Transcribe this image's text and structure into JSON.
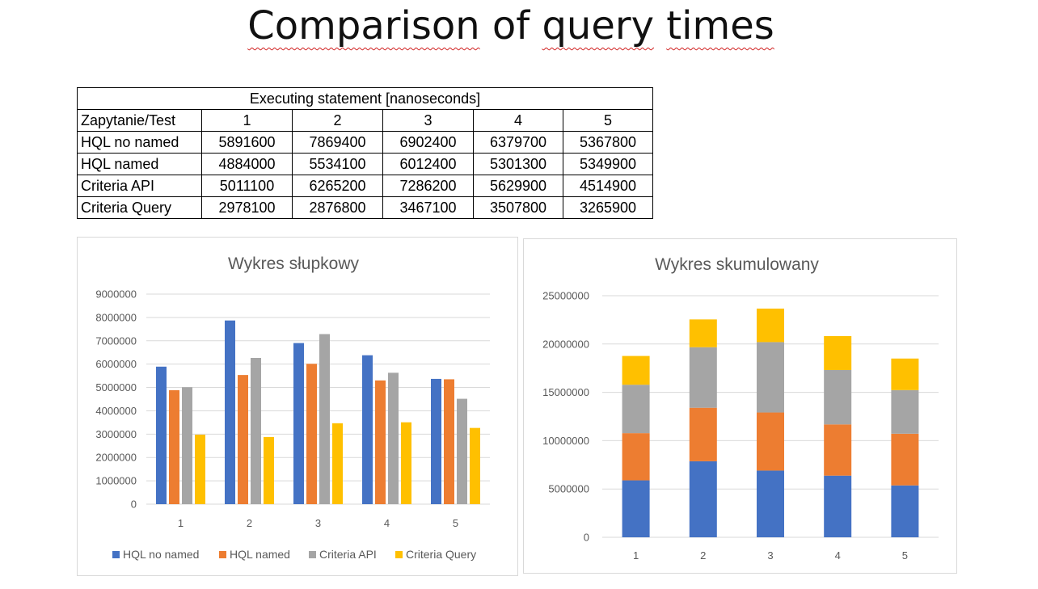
{
  "slide": {
    "title_words": [
      "Comparison",
      "of",
      "query",
      "times"
    ]
  },
  "table": {
    "caption": "Executing statement [nanoseconds]",
    "header": [
      "Zapytanie/Test",
      "1",
      "2",
      "3",
      "4",
      "5"
    ],
    "rows": [
      {
        "label": "HQL no named",
        "values": [
          "5891600",
          "7869400",
          "6902400",
          "6379700",
          "5367800"
        ]
      },
      {
        "label": "HQL named",
        "values": [
          "4884000",
          "5534100",
          "6012400",
          "5301300",
          "5349900"
        ]
      },
      {
        "label": "Criteria API",
        "values": [
          "5011100",
          "6265200",
          "7286200",
          "5629900",
          "4514900"
        ]
      },
      {
        "label": "Criteria Query",
        "values": [
          "2978100",
          "2876800",
          "3467100",
          "3507800",
          "3265900"
        ]
      }
    ]
  },
  "chart_data": [
    {
      "type": "bar",
      "title": "Wykres słupkowy",
      "categories": [
        "1",
        "2",
        "3",
        "4",
        "5"
      ],
      "series": [
        {
          "name": "HQL no named",
          "color": "#4472c4",
          "values": [
            5891600,
            7869400,
            6902400,
            6379700,
            5367800
          ]
        },
        {
          "name": "HQL named",
          "color": "#ed7d31",
          "values": [
            4884000,
            5534100,
            6012400,
            5301300,
            5349900
          ]
        },
        {
          "name": "Criteria API",
          "color": "#a5a5a5",
          "values": [
            5011100,
            6265200,
            7286200,
            5629900,
            4514900
          ]
        },
        {
          "name": "Criteria Query",
          "color": "#ffc000",
          "values": [
            2978100,
            2876800,
            3467100,
            3507800,
            3265900
          ]
        }
      ],
      "ylim": [
        0,
        9000000
      ],
      "yticks": [
        "0",
        "1000000",
        "2000000",
        "3000000",
        "4000000",
        "5000000",
        "6000000",
        "7000000",
        "8000000",
        "9000000"
      ],
      "grid": true,
      "legend": "bottom"
    },
    {
      "type": "bar",
      "stacked": true,
      "title": "Wykres skumulowany",
      "categories": [
        "1",
        "2",
        "3",
        "4",
        "5"
      ],
      "series": [
        {
          "name": "HQL no named",
          "color": "#4472c4",
          "values": [
            5891600,
            7869400,
            6902400,
            6379700,
            5367800
          ]
        },
        {
          "name": "HQL named",
          "color": "#ed7d31",
          "values": [
            4884000,
            5534100,
            6012400,
            5301300,
            5349900
          ]
        },
        {
          "name": "Criteria API",
          "color": "#a5a5a5",
          "values": [
            5011100,
            6265200,
            7286200,
            5629900,
            4514900
          ]
        },
        {
          "name": "Criteria Query",
          "color": "#ffc000",
          "values": [
            2978100,
            2876800,
            3467100,
            3507800,
            3265900
          ]
        }
      ],
      "ylim": [
        0,
        25000000
      ],
      "yticks": [
        "0",
        "5000000",
        "10000000",
        "15000000",
        "20000000",
        "25000000"
      ],
      "grid": true,
      "legend": "none"
    }
  ]
}
